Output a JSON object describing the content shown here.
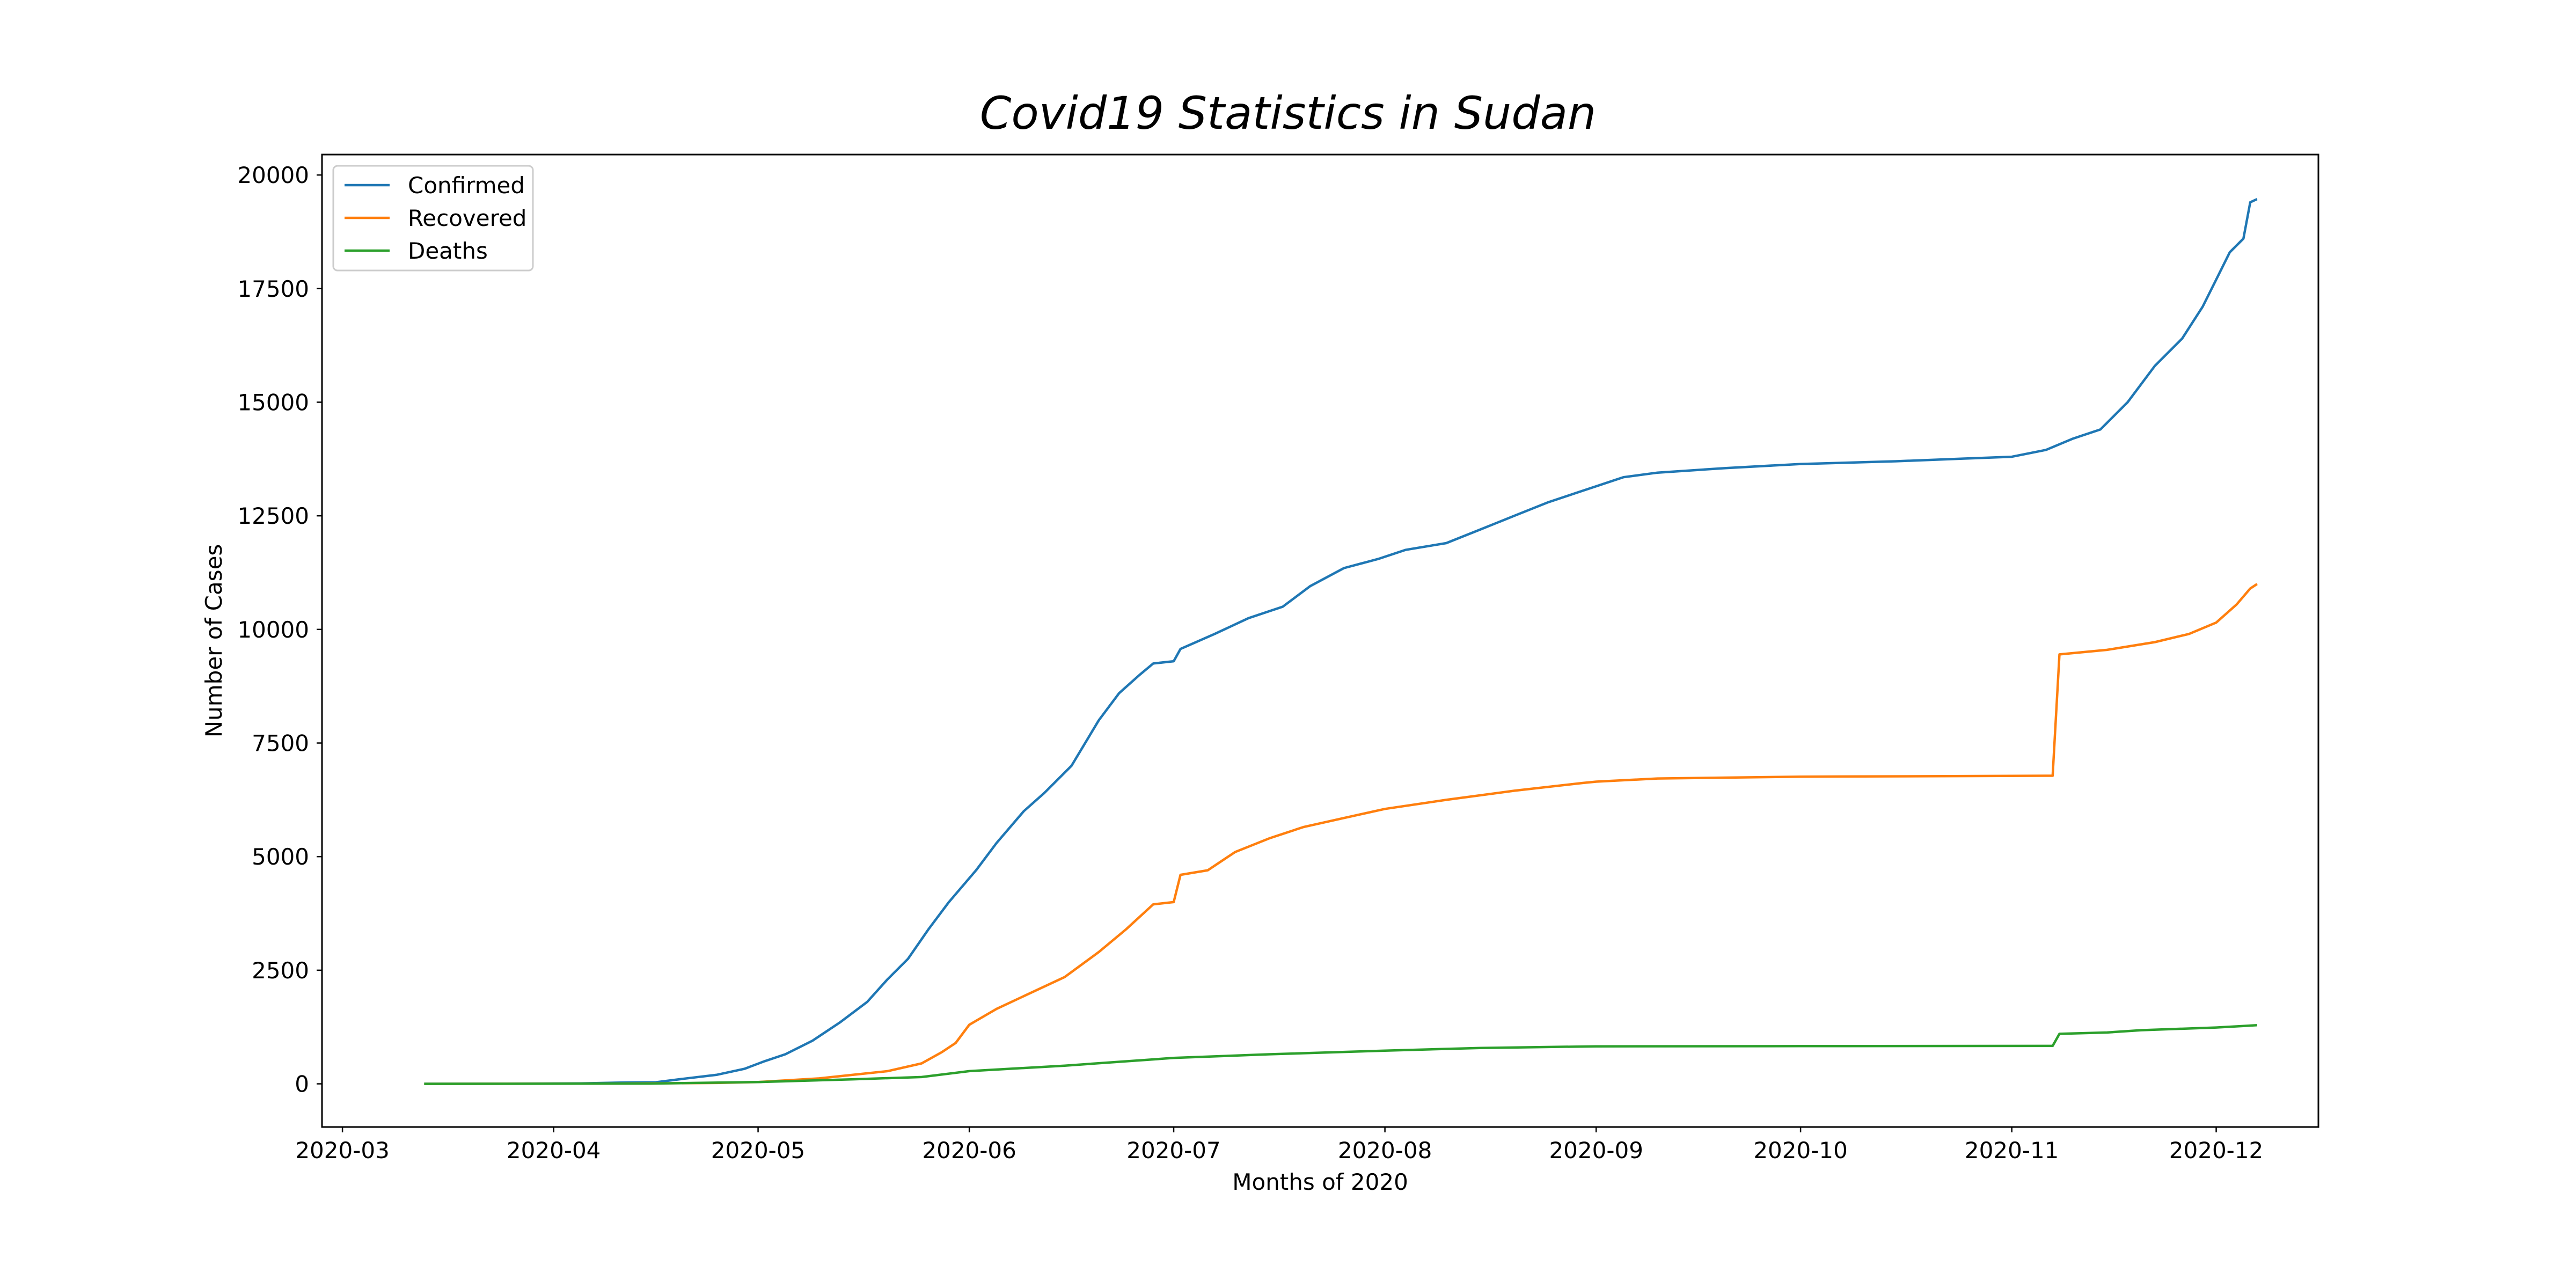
{
  "chart_data": {
    "type": "line",
    "title": "Covid19 Statistics in Sudan",
    "xlabel": "Months of 2020",
    "ylabel": "Number of Cases",
    "xlim": [
      "2020-02-27",
      "2020-12-16"
    ],
    "ylim": [
      -950,
      20450
    ],
    "x_ticks": [
      "2020-03-01",
      "2020-04-01",
      "2020-05-01",
      "2020-06-01",
      "2020-07-01",
      "2020-08-01",
      "2020-09-01",
      "2020-10-01",
      "2020-11-01",
      "2020-12-01"
    ],
    "x_tick_labels": [
      "2020-03",
      "2020-04",
      "2020-05",
      "2020-06",
      "2020-07",
      "2020-08",
      "2020-09",
      "2020-10",
      "2020-11",
      "2020-12"
    ],
    "y_ticks": [
      0,
      2500,
      5000,
      7500,
      10000,
      12500,
      15000,
      17500,
      20000
    ],
    "y_tick_labels": [
      "0",
      "2500",
      "5000",
      "7500",
      "10000",
      "12500",
      "15000",
      "17500",
      "20000"
    ],
    "grid": false,
    "legend_position": "top-left",
    "series": [
      {
        "name": "Confirmed",
        "color": "#1f77b4",
        "points": [
          [
            "2020-03-13",
            1
          ],
          [
            "2020-03-25",
            3
          ],
          [
            "2020-04-05",
            10
          ],
          [
            "2020-04-12",
            30
          ],
          [
            "2020-04-16",
            35
          ],
          [
            "2020-04-20",
            110
          ],
          [
            "2020-04-25",
            200
          ],
          [
            "2020-04-29",
            330
          ],
          [
            "2020-05-02",
            500
          ],
          [
            "2020-05-05",
            650
          ],
          [
            "2020-05-09",
            950
          ],
          [
            "2020-05-13",
            1350
          ],
          [
            "2020-05-17",
            1800
          ],
          [
            "2020-05-20",
            2300
          ],
          [
            "2020-05-23",
            2750
          ],
          [
            "2020-05-26",
            3400
          ],
          [
            "2020-05-29",
            4000
          ],
          [
            "2020-06-02",
            4700
          ],
          [
            "2020-06-05",
            5300
          ],
          [
            "2020-06-09",
            6000
          ],
          [
            "2020-06-12",
            6400
          ],
          [
            "2020-06-16",
            7000
          ],
          [
            "2020-06-20",
            8000
          ],
          [
            "2020-06-23",
            8600
          ],
          [
            "2020-06-26",
            9000
          ],
          [
            "2020-06-28",
            9250
          ],
          [
            "2020-07-01",
            9300
          ],
          [
            "2020-07-02",
            9570
          ],
          [
            "2020-07-07",
            9900
          ],
          [
            "2020-07-12",
            10250
          ],
          [
            "2020-07-17",
            10500
          ],
          [
            "2020-07-21",
            10950
          ],
          [
            "2020-07-26",
            11350
          ],
          [
            "2020-07-31",
            11550
          ],
          [
            "2020-08-04",
            11750
          ],
          [
            "2020-08-10",
            11900
          ],
          [
            "2020-08-15",
            12200
          ],
          [
            "2020-08-20",
            12500
          ],
          [
            "2020-08-25",
            12800
          ],
          [
            "2020-08-29",
            13000
          ],
          [
            "2020-09-01",
            13150
          ],
          [
            "2020-09-05",
            13350
          ],
          [
            "2020-09-10",
            13450
          ],
          [
            "2020-09-20",
            13550
          ],
          [
            "2020-10-01",
            13640
          ],
          [
            "2020-10-15",
            13700
          ],
          [
            "2020-10-25",
            13760
          ],
          [
            "2020-11-01",
            13800
          ],
          [
            "2020-11-06",
            13950
          ],
          [
            "2020-11-10",
            14200
          ],
          [
            "2020-11-14",
            14400
          ],
          [
            "2020-11-18",
            15000
          ],
          [
            "2020-11-22",
            15800
          ],
          [
            "2020-11-26",
            16400
          ],
          [
            "2020-11-29",
            17100
          ],
          [
            "2020-12-01",
            17700
          ],
          [
            "2020-12-03",
            18300
          ],
          [
            "2020-12-05",
            18600
          ],
          [
            "2020-12-06",
            19400
          ],
          [
            "2020-12-07",
            19470
          ]
        ]
      },
      {
        "name": "Recovered",
        "color": "#ff7f0e",
        "points": [
          [
            "2020-03-13",
            0
          ],
          [
            "2020-04-10",
            5
          ],
          [
            "2020-04-25",
            20
          ],
          [
            "2020-05-01",
            40
          ],
          [
            "2020-05-10",
            120
          ],
          [
            "2020-05-15",
            200
          ],
          [
            "2020-05-20",
            280
          ],
          [
            "2020-05-25",
            450
          ],
          [
            "2020-05-28",
            700
          ],
          [
            "2020-05-30",
            900
          ],
          [
            "2020-06-01",
            1300
          ],
          [
            "2020-06-05",
            1650
          ],
          [
            "2020-06-10",
            2000
          ],
          [
            "2020-06-15",
            2350
          ],
          [
            "2020-06-20",
            2900
          ],
          [
            "2020-06-24",
            3400
          ],
          [
            "2020-06-28",
            3950
          ],
          [
            "2020-07-01",
            4000
          ],
          [
            "2020-07-02",
            4600
          ],
          [
            "2020-07-06",
            4700
          ],
          [
            "2020-07-10",
            5100
          ],
          [
            "2020-07-15",
            5400
          ],
          [
            "2020-07-20",
            5650
          ],
          [
            "2020-07-26",
            5850
          ],
          [
            "2020-08-01",
            6050
          ],
          [
            "2020-08-10",
            6250
          ],
          [
            "2020-08-20",
            6450
          ],
          [
            "2020-08-30",
            6620
          ],
          [
            "2020-09-01",
            6650
          ],
          [
            "2020-09-10",
            6720
          ],
          [
            "2020-10-01",
            6760
          ],
          [
            "2020-11-07",
            6780
          ],
          [
            "2020-11-08",
            9450
          ],
          [
            "2020-11-15",
            9550
          ],
          [
            "2020-11-22",
            9720
          ],
          [
            "2020-11-27",
            9900
          ],
          [
            "2020-12-01",
            10150
          ],
          [
            "2020-12-04",
            10550
          ],
          [
            "2020-12-06",
            10900
          ],
          [
            "2020-12-07",
            11000
          ]
        ]
      },
      {
        "name": "Deaths",
        "color": "#2ca02c",
        "points": [
          [
            "2020-03-13",
            0
          ],
          [
            "2020-04-15",
            5
          ],
          [
            "2020-05-01",
            40
          ],
          [
            "2020-05-15",
            100
          ],
          [
            "2020-05-25",
            150
          ],
          [
            "2020-06-01",
            280
          ],
          [
            "2020-06-15",
            400
          ],
          [
            "2020-07-01",
            570
          ],
          [
            "2020-07-15",
            650
          ],
          [
            "2020-08-01",
            730
          ],
          [
            "2020-08-15",
            790
          ],
          [
            "2020-09-01",
            825
          ],
          [
            "2020-10-01",
            830
          ],
          [
            "2020-11-07",
            835
          ],
          [
            "2020-11-08",
            1100
          ],
          [
            "2020-11-15",
            1130
          ],
          [
            "2020-11-20",
            1180
          ],
          [
            "2020-12-01",
            1240
          ],
          [
            "2020-12-07",
            1290
          ]
        ]
      }
    ]
  }
}
